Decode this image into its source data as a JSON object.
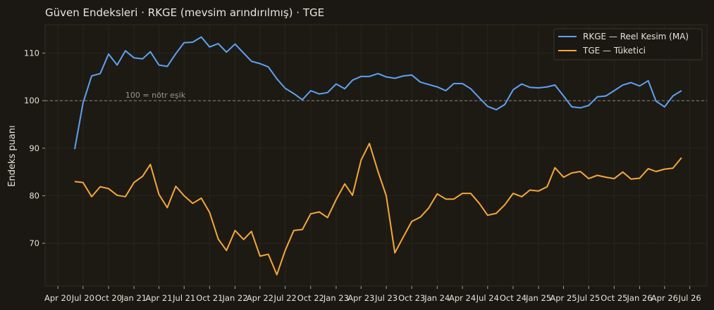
{
  "chart_data": {
    "type": "line",
    "title": "Güven Endeksleri · RKGE (mevsim arındırılmış) · TGE",
    "xlabel": "",
    "ylabel": "Endeks puanı",
    "x_ticks": [
      "Apr 20",
      "Jul 20",
      "Oct 20",
      "Jan 21",
      "Apr 21",
      "Jul 21",
      "Oct 21",
      "Jan 22",
      "Apr 22",
      "Jul 22",
      "Oct 22",
      "Jan 23",
      "Apr 23",
      "Jul 23",
      "Oct 23",
      "Jan 24",
      "Apr 24",
      "Jul 24",
      "Oct 24",
      "Jan 25",
      "Apr 25",
      "Jul 25",
      "Oct 25",
      "Jan 26",
      "Apr 26",
      "Jul 26"
    ],
    "x_range": [
      "2020-02-15",
      "2026-09-01"
    ],
    "ylim": [
      61,
      116
    ],
    "y_ticks": [
      70,
      80,
      90,
      100,
      110
    ],
    "legend_position": "top-right",
    "grid": true,
    "reference_line": {
      "y": 100,
      "label": "100 = nötr eşik"
    },
    "x": [
      "2020-06",
      "2020-07",
      "2020-08",
      "2020-09",
      "2020-10",
      "2020-11",
      "2020-12",
      "2021-01",
      "2021-02",
      "2021-03",
      "2021-04",
      "2021-05",
      "2021-06",
      "2021-07",
      "2021-08",
      "2021-09",
      "2021-10",
      "2021-11",
      "2021-12",
      "2022-01",
      "2022-02",
      "2022-03",
      "2022-04",
      "2022-05",
      "2022-06",
      "2022-07",
      "2022-08",
      "2022-09",
      "2022-10",
      "2022-11",
      "2022-12",
      "2023-01",
      "2023-02",
      "2023-03",
      "2023-04",
      "2023-05",
      "2023-06",
      "2023-07",
      "2023-08",
      "2023-09",
      "2023-10",
      "2023-11",
      "2023-12",
      "2024-01",
      "2024-02",
      "2024-03",
      "2024-04",
      "2024-05",
      "2024-06",
      "2024-07",
      "2024-08",
      "2024-09",
      "2024-10",
      "2024-11",
      "2024-12",
      "2025-01",
      "2025-02",
      "2025-03",
      "2025-04",
      "2025-05",
      "2025-06",
      "2025-07",
      "2025-08",
      "2025-09",
      "2025-10",
      "2025-11",
      "2025-12",
      "2026-01",
      "2026-02",
      "2026-03",
      "2026-04",
      "2026-05",
      "2026-06"
    ],
    "series": [
      {
        "name": "RKGE — Reel Kesim (MA)",
        "color": "#5ea2f0",
        "values": [
          89.8,
          99.5,
          105.2,
          105.7,
          109.8,
          107.5,
          110.5,
          109.0,
          108.8,
          110.3,
          107.5,
          107.2,
          109.9,
          112.2,
          112.3,
          113.4,
          111.3,
          112.0,
          110.2,
          111.9,
          110.0,
          108.3,
          107.8,
          107.1,
          104.6,
          102.6,
          101.5,
          100.2,
          102.1,
          101.4,
          101.7,
          103.5,
          102.5,
          104.3,
          105.1,
          105.1,
          105.7,
          105.0,
          104.7,
          105.2,
          105.4,
          103.9,
          103.4,
          102.9,
          102.1,
          103.6,
          103.6,
          102.5,
          100.6,
          98.8,
          98.1,
          99.2,
          102.3,
          103.5,
          102.8,
          102.7,
          102.9,
          103.3,
          101.0,
          98.7,
          98.5,
          99.0,
          100.8,
          101.0,
          102.1,
          103.3,
          103.8,
          103.1,
          104.2,
          99.9,
          98.7,
          101.0,
          102.1
        ]
      },
      {
        "name": "TGE — Tüketici",
        "color": "#f5a73a",
        "values": [
          83.0,
          82.8,
          79.8,
          81.9,
          81.5,
          80.1,
          79.8,
          82.8,
          84.1,
          86.6,
          80.3,
          77.5,
          82.0,
          80.0,
          78.4,
          79.5,
          76.5,
          70.9,
          68.5,
          72.7,
          70.8,
          72.5,
          67.3,
          67.7,
          63.4,
          68.5,
          72.7,
          72.9,
          76.2,
          76.6,
          75.4,
          79.2,
          82.5,
          80.1,
          87.5,
          91.0,
          85.1,
          80.0,
          68.0,
          71.4,
          74.6,
          75.5,
          77.4,
          80.4,
          79.3,
          79.3,
          80.5,
          80.5,
          78.4,
          75.9,
          76.3,
          78.1,
          80.5,
          79.8,
          81.2,
          81.0,
          81.9,
          85.9,
          83.9,
          84.8,
          85.1,
          83.6,
          84.3,
          83.9,
          83.6,
          85.0,
          83.5,
          83.7,
          85.7,
          85.1,
          85.6,
          85.8,
          88.0
        ]
      }
    ]
  }
}
